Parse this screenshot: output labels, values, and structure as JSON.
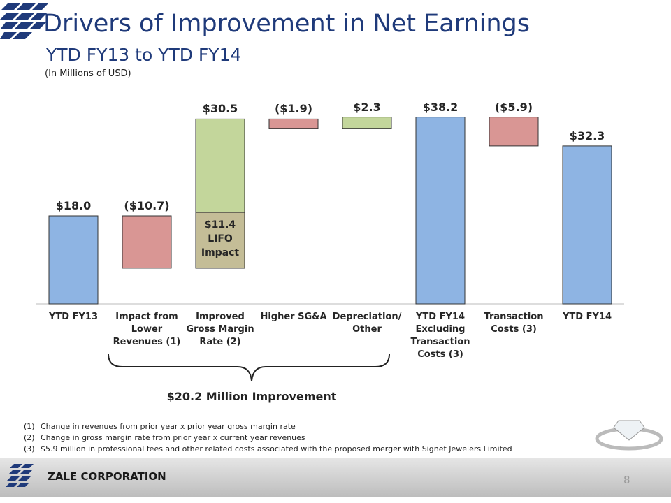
{
  "header": {
    "title": "Drivers of Improvement in Net Earnings",
    "subtitle": "YTD FY13 to YTD FY14",
    "note": "(In Millions of USD)"
  },
  "chart_data": {
    "type": "waterfall",
    "categories": [
      "YTD FY13",
      "Impact from Lower Revenues (1)",
      "Improved Gross Margin Rate (2)",
      "Higher SG&A",
      "Depreciation/ Other",
      "YTD FY14 Excluding Transaction Costs (3)",
      "Transaction Costs (3)",
      "YTD FY14"
    ],
    "values": [
      18.0,
      -10.7,
      30.5,
      -1.9,
      2.3,
      38.2,
      -5.9,
      32.3
    ],
    "value_labels": [
      "$18.0",
      "($10.7)",
      "$30.5",
      "($1.9)",
      "$2.3",
      "$38.2",
      "($5.9)",
      "$32.3"
    ],
    "totals": [
      true,
      false,
      false,
      false,
      false,
      true,
      false,
      true
    ],
    "colors": {
      "total": "#8eb4e3",
      "increase": "#c3d69b",
      "decrease": "#d99694"
    },
    "segment": {
      "category_index": 2,
      "value": 11.4,
      "label": "$11.4 LIFO Impact",
      "color": "#c4bd97"
    },
    "ylim": [
      0,
      40
    ],
    "annotation": "$20.2 Million Improvement"
  },
  "footnotes": [
    {
      "marker": "(1)",
      "text": "Change in revenues from prior year x prior year gross margin rate"
    },
    {
      "marker": "(2)",
      "text": "Change in gross margin rate from prior year x current year revenues"
    },
    {
      "marker": "(3)",
      "text": "$5.9 million in professional fees and other related costs associated with the proposed merger with Signet Jewelers Limited"
    }
  ],
  "footer": {
    "company": "ZALE CORPORATION",
    "page": "8"
  }
}
